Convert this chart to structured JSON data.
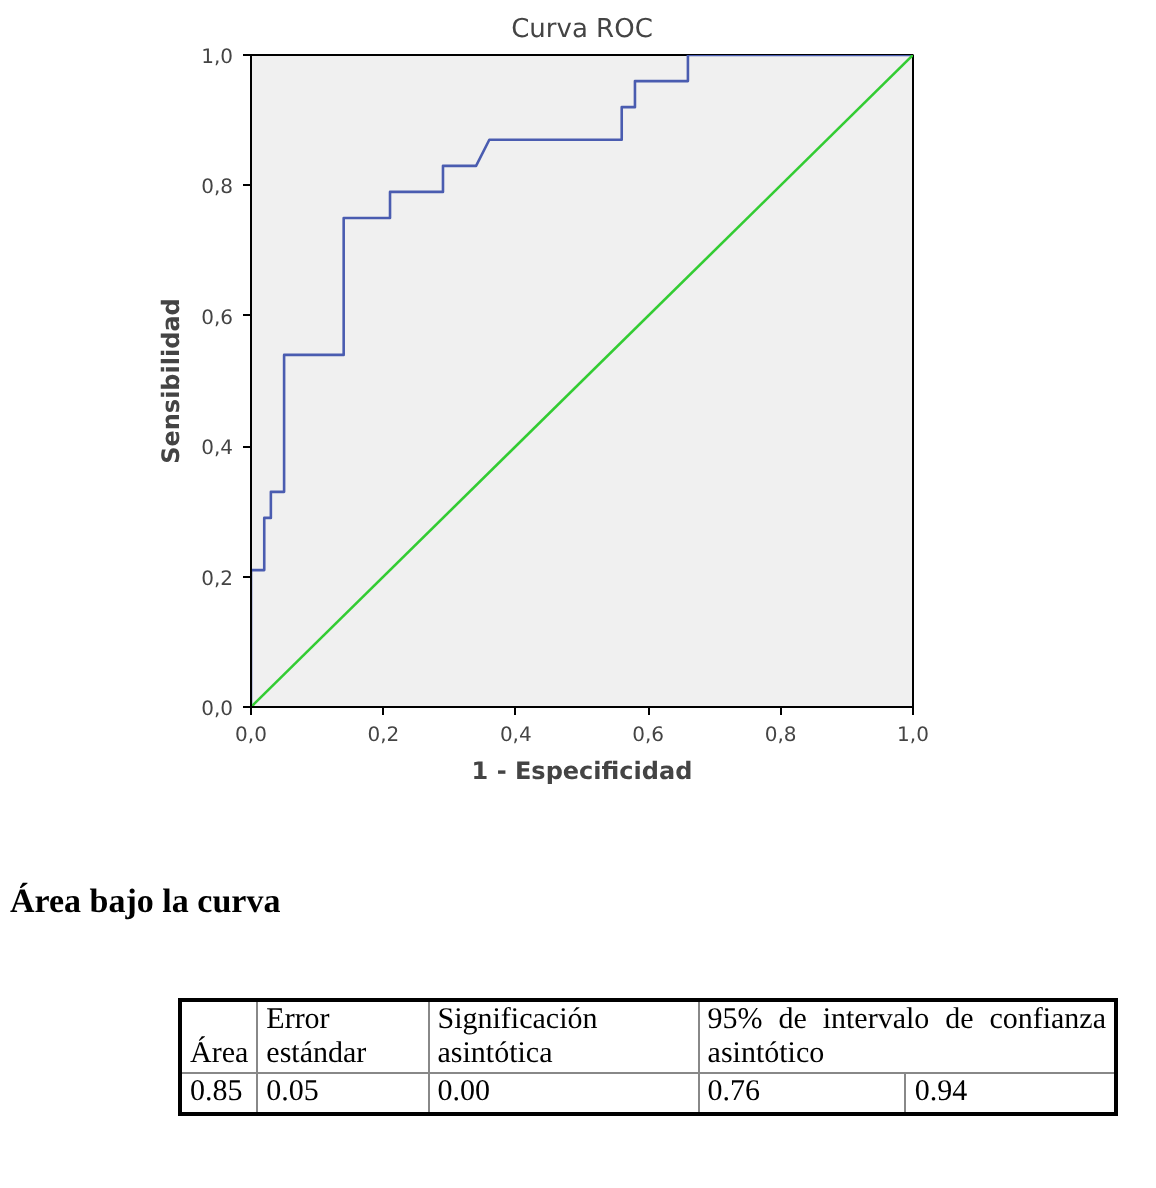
{
  "chart_data": {
    "type": "line",
    "title": "Curva ROC",
    "xlabel": "1 - Especificidad",
    "ylabel": "Sensibilidad",
    "xlim": [
      0,
      1
    ],
    "ylim": [
      0,
      1
    ],
    "xticks": [
      {
        "value": 0,
        "label": "0,0"
      },
      {
        "value": 0.2,
        "label": "0,2"
      },
      {
        "value": 0.4,
        "label": "0,4"
      },
      {
        "value": 0.6,
        "label": "0,6"
      },
      {
        "value": 0.8,
        "label": "0,8"
      },
      {
        "value": 1,
        "label": "1,0"
      }
    ],
    "yticks": [
      {
        "value": 0,
        "label": "0,0"
      },
      {
        "value": 0.2,
        "label": "0,2"
      },
      {
        "value": 0.4,
        "label": "0,4"
      },
      {
        "value": 0.6,
        "label": "0,6"
      },
      {
        "value": 0.8,
        "label": "0,8"
      },
      {
        "value": 1,
        "label": "1,0"
      }
    ],
    "grid": false,
    "marker": "none",
    "line_style": "solid",
    "series": [
      {
        "color": "#4a5cb0",
        "x": [
          0,
          0,
          0.02,
          0.02,
          0.03,
          0.03,
          0.05,
          0.05,
          0.14,
          0.14,
          0.21,
          0.21,
          0.29,
          0.29,
          0.34,
          0.36,
          0.56,
          0.56,
          0.58,
          0.58,
          0.66,
          0.66,
          1
        ],
        "values": [
          0,
          0.21,
          0.21,
          0.29,
          0.29,
          0.33,
          0.33,
          0.54,
          0.54,
          0.75,
          0.75,
          0.79,
          0.79,
          0.83,
          0.83,
          0.87,
          0.87,
          0.92,
          0.92,
          0.96,
          0.96,
          1,
          1
        ]
      },
      {
        "color": "#33cc33",
        "x": [
          0,
          1
        ],
        "values": [
          0,
          1
        ]
      }
    ],
    "annotations": [
      "Área bajo la curva",
      "Área",
      "Error estándar",
      "Significación asintótica",
      "95% de intervalo de confianza asintótico",
      "0.85",
      "0.05",
      "0.00",
      "0.76",
      "0.94"
    ]
  }
}
